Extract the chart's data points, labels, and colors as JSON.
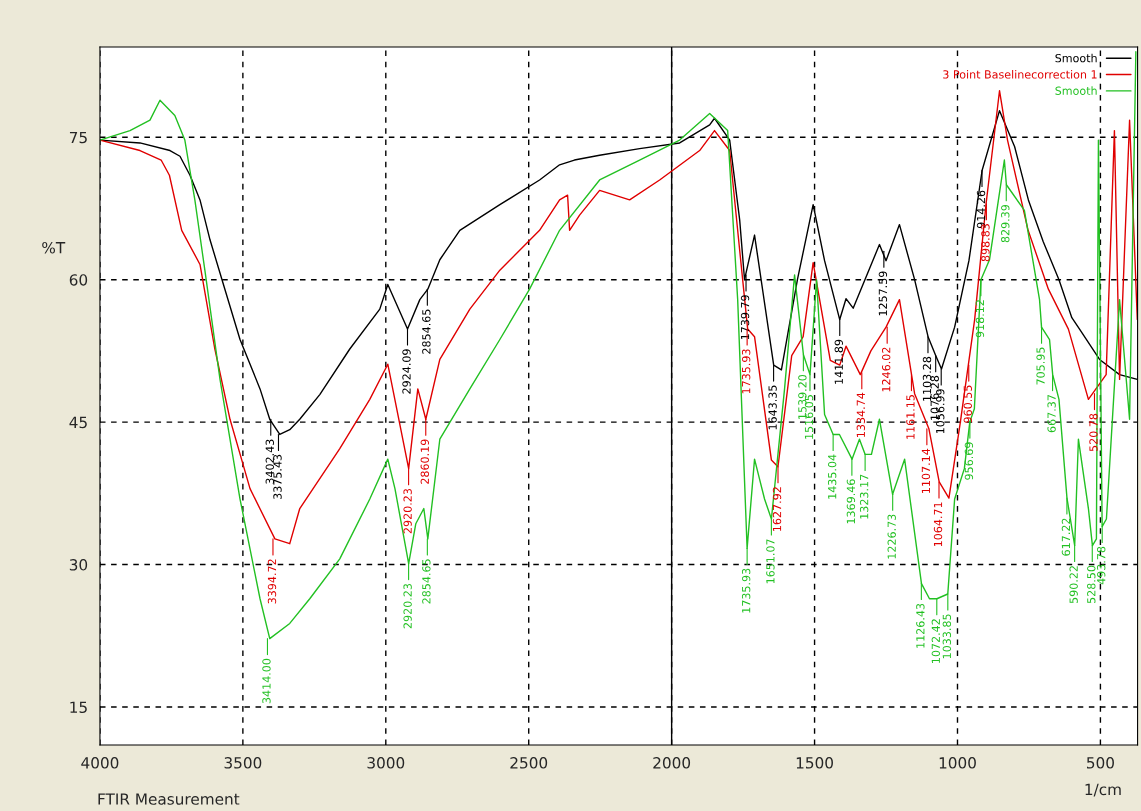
{
  "chart_data": {
    "type": "line",
    "xlabel": "1/cm",
    "ylabel": "%T",
    "xlim": [
      4000,
      370
    ],
    "ylim": [
      11,
      84.5
    ],
    "xticks": [
      4000,
      3500,
      3000,
      2500,
      2000,
      1500,
      1000,
      500
    ],
    "yticks": [
      15,
      30,
      45,
      60,
      75
    ],
    "grid": true,
    "legend": "top right",
    "line_style": "solid",
    "ref_lines": [
      {
        "axis": "x",
        "value": 2000,
        "color": "#000000",
        "line_style": "solid"
      }
    ],
    "series": [
      {
        "name": "Smooth",
        "color": "#000000",
        "x": [
          4000,
          3860,
          3755,
          3720,
          3685,
          3650,
          3615,
          3563,
          3510,
          3440,
          3406,
          3371,
          3336,
          3301,
          3231,
          3126,
          3021,
          2993,
          2924,
          2881,
          2853,
          2811,
          2741,
          2601,
          2462,
          2392,
          2340,
          2252,
          2112,
          1972,
          1867,
          1850,
          1797,
          1762,
          1745,
          1710,
          1643,
          1616,
          1560,
          1505,
          1465,
          1412,
          1390,
          1365,
          1273,
          1250,
          1203,
          1150,
          1103,
          1076,
          1056,
          1010,
          960,
          914,
          853,
          800,
          752,
          700,
          645,
          600,
          573,
          503,
          433,
          371
        ],
        "values": [
          74.7,
          74.4,
          73.6,
          73.0,
          71.0,
          68.4,
          64.2,
          59.0,
          53.7,
          48.5,
          45.3,
          43.7,
          44.2,
          45.3,
          47.9,
          52.7,
          56.9,
          59.5,
          54.8,
          57.9,
          59.0,
          62.1,
          65.2,
          67.9,
          70.5,
          72.1,
          72.6,
          73.1,
          73.8,
          74.4,
          76.3,
          77.0,
          74.7,
          66.3,
          60.0,
          64.7,
          51.0,
          50.5,
          60.0,
          67.9,
          62.0,
          55.8,
          58.0,
          57.0,
          63.7,
          62.0,
          65.8,
          60.0,
          54.0,
          52.0,
          50.6,
          55.0,
          62.0,
          71.5,
          77.8,
          74.0,
          68.4,
          64.0,
          60.0,
          56.0,
          54.8,
          51.6,
          50.0,
          49.5
        ]
      },
      {
        "name": "3 Point Baselinecorrection 1",
        "color": "#e00000",
        "x": [
          4000,
          3860,
          3786,
          3757,
          3714,
          3650,
          3598,
          3545,
          3475,
          3388,
          3336,
          3301,
          3161,
          3056,
          2993,
          2920,
          2888,
          2860,
          2811,
          2706,
          2601,
          2462,
          2392,
          2364,
          2357,
          2322,
          2252,
          2147,
          2042,
          1902,
          1850,
          1797,
          1762,
          1734,
          1710,
          1651,
          1628,
          1580,
          1540,
          1505,
          1445,
          1412,
          1390,
          1340,
          1303,
          1250,
          1203,
          1150,
          1100,
          1064,
          1030,
          990,
          940,
          900,
          853,
          825,
          753,
          682,
          612,
          542,
          480,
          451,
          433,
          398,
          371
        ],
        "values": [
          74.7,
          73.6,
          72.6,
          71.0,
          65.2,
          61.6,
          52.7,
          45.3,
          38.0,
          32.7,
          32.2,
          35.9,
          42.2,
          47.4,
          51.1,
          40.1,
          48.5,
          45.3,
          51.6,
          56.9,
          61.0,
          65.2,
          68.4,
          68.9,
          65.2,
          66.8,
          69.4,
          68.4,
          70.5,
          73.6,
          75.7,
          73.6,
          63.1,
          54.8,
          54.0,
          41.0,
          40.3,
          52.0,
          54.0,
          61.8,
          51.5,
          51.0,
          53.0,
          50.0,
          52.5,
          55.0,
          57.9,
          48.0,
          44.3,
          38.7,
          37.0,
          45.0,
          55.8,
          68.0,
          79.9,
          74.7,
          65.2,
          59.0,
          54.8,
          47.4,
          50.0,
          75.7,
          49.5,
          76.8,
          55.8
        ]
      },
      {
        "name": "Smooth",
        "color": "#22c022",
        "x": [
          4000,
          3895,
          3825,
          3790,
          3738,
          3703,
          3668,
          3633,
          3580,
          3510,
          3440,
          3406,
          3336,
          3266,
          3161,
          3056,
          2993,
          2968,
          2920,
          2895,
          2867,
          2853,
          2811,
          2706,
          2601,
          2497,
          2392,
          2252,
          2112,
          1972,
          1867,
          1804,
          1769,
          1736,
          1710,
          1675,
          1651,
          1605,
          1570,
          1539,
          1516,
          1493,
          1465,
          1435,
          1413,
          1369,
          1343,
          1323,
          1301,
          1273,
          1227,
          1185,
          1126,
          1098,
          1072,
          1034,
          1010,
          976,
          957,
          941,
          918,
          888,
          836,
          829,
          766,
          713,
          706,
          678,
          667,
          645,
          617,
          590,
          577,
          542,
          528,
          514,
          507,
          494,
          479,
          433,
          398,
          376
        ],
        "values": [
          74.7,
          75.7,
          76.8,
          78.9,
          77.3,
          74.7,
          68.4,
          61.0,
          49.5,
          36.9,
          26.4,
          22.2,
          23.8,
          26.4,
          30.6,
          36.9,
          41.1,
          38.0,
          30.1,
          34.3,
          35.9,
          32.7,
          43.2,
          48.5,
          53.7,
          59.0,
          65.2,
          70.5,
          72.6,
          74.7,
          77.5,
          75.7,
          57.9,
          31.7,
          41.1,
          36.9,
          34.8,
          48.5,
          60.5,
          52.1,
          50.0,
          60.0,
          45.8,
          43.7,
          43.7,
          41.1,
          43.2,
          41.6,
          41.6,
          45.3,
          37.4,
          41.1,
          28.0,
          26.4,
          26.4,
          26.9,
          36.9,
          40.1,
          45.0,
          46.4,
          60.0,
          62.1,
          72.6,
          70.0,
          67.3,
          57.9,
          55.0,
          53.7,
          50.0,
          47.4,
          37.0,
          32.0,
          43.2,
          35.9,
          32.0,
          32.7,
          74.7,
          34.0,
          34.8,
          57.9,
          45.3,
          84.0
        ]
      }
    ],
    "annotations": [
      "FTIR Measurement",
      {
        "text": "3402.43",
        "x": 3402.43,
        "y": 45.3
      },
      {
        "text": "3375.43",
        "x": 3375.43,
        "y": 43.7
      },
      {
        "text": "2924.09",
        "x": 2924.09,
        "y": 54.8
      },
      {
        "text": "2854.65",
        "x": 2854.65,
        "y": 59.0
      },
      {
        "text": "1739.79",
        "x": 1739.79,
        "y": 60.5
      },
      {
        "text": "1643.35",
        "x": 1643.35,
        "y": 51.0
      },
      {
        "text": "1411.89",
        "x": 1411.89,
        "y": 55.8
      },
      {
        "text": "1257.59",
        "x": 1257.59,
        "y": 63.0
      },
      {
        "text": "1103.28",
        "x": 1103.28,
        "y": 54.0
      },
      {
        "text": "1076.28",
        "x": 1076.28,
        "y": 52.0
      },
      {
        "text": "1056.99",
        "x": 1056.99,
        "y": 50.6
      },
      {
        "text": "914.26",
        "x": 914.26,
        "y": 71.5
      },
      {
        "text": "3394.72",
        "x": 3394.72,
        "y": 32.7
      },
      {
        "text": "2920.23",
        "x": 2920.23,
        "y": 40.1
      },
      {
        "text": "2860.19",
        "x": 2860.19,
        "y": 45.3
      },
      {
        "text": "1735.93",
        "x": 1735.93,
        "y": 54.8
      },
      {
        "text": "1627.92",
        "x": 1627.92,
        "y": 40.3
      },
      {
        "text": "1334.74",
        "x": 1334.74,
        "y": 50.2
      },
      {
        "text": "1246.02",
        "x": 1246.02,
        "y": 55.0
      },
      {
        "text": "1161.15",
        "x": 1161.15,
        "y": 50.0
      },
      {
        "text": "1107.14",
        "x": 1107.14,
        "y": 44.3
      },
      {
        "text": "1064.71",
        "x": 1064.71,
        "y": 38.7
      },
      {
        "text": "960.55",
        "x": 960.55,
        "y": 51.0
      },
      {
        "text": "898.83",
        "x": 898.83,
        "y": 68.0
      },
      {
        "text": "520.78",
        "x": 520.78,
        "y": 48.0
      },
      {
        "text": "3414.00",
        "x": 3414.0,
        "y": 22.2
      },
      {
        "text": "2920.23",
        "x": 2920.23,
        "y": 30.1
      },
      {
        "text": "2854.65",
        "x": 2854.65,
        "y": 32.7
      },
      {
        "text": "1735.93",
        "x": 1735.93,
        "y": 31.7
      },
      {
        "text": "1651.07",
        "x": 1651.07,
        "y": 34.8
      },
      {
        "text": "1539.20",
        "x": 1539.2,
        "y": 52.1
      },
      {
        "text": "1516.05",
        "x": 1516.05,
        "y": 50.0
      },
      {
        "text": "1435.04",
        "x": 1435.04,
        "y": 43.7
      },
      {
        "text": "1369.46",
        "x": 1369.46,
        "y": 41.1
      },
      {
        "text": "1323.17",
        "x": 1323.17,
        "y": 41.6
      },
      {
        "text": "1226.73",
        "x": 1226.73,
        "y": 37.4
      },
      {
        "text": "1126.43",
        "x": 1126.43,
        "y": 28.0
      },
      {
        "text": "1072.42",
        "x": 1072.42,
        "y": 26.4
      },
      {
        "text": "1033.85",
        "x": 1033.85,
        "y": 26.9
      },
      {
        "text": "956.69",
        "x": 956.69,
        "y": 45.0
      },
      {
        "text": "918.12",
        "x": 918.12,
        "y": 60.0
      },
      {
        "text": "829.39",
        "x": 829.39,
        "y": 70.0
      },
      {
        "text": "705.95",
        "x": 705.95,
        "y": 55.0
      },
      {
        "text": "667.37",
        "x": 667.37,
        "y": 50.0
      },
      {
        "text": "617.22",
        "x": 617.22,
        "y": 37.0
      },
      {
        "text": "590.22",
        "x": 590.22,
        "y": 32.0
      },
      {
        "text": "528.50",
        "x": 528.5,
        "y": 32.0
      },
      {
        "text": "493.78",
        "x": 493.78,
        "y": 34.0
      }
    ]
  }
}
